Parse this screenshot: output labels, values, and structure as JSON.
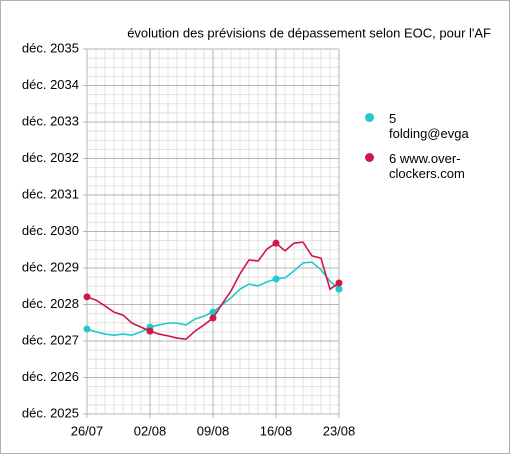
{
  "chart_data": {
    "type": "line",
    "title": "évolution des prévisions de dépassement selon EOC, pour l'AF",
    "categories": [
      "26/07",
      null,
      null,
      null,
      null,
      null,
      null,
      "02/08",
      null,
      null,
      null,
      null,
      null,
      null,
      "09/08",
      null,
      null,
      null,
      null,
      null,
      null,
      "16/08",
      null,
      null,
      null,
      null,
      null,
      null,
      "23/08"
    ],
    "series": [
      {
        "name": "5 folding@evga",
        "color": "#1fc9cf",
        "values": [
          2027.33,
          2027.25,
          2027.19,
          2027.16,
          2027.19,
          2027.16,
          2027.25,
          2027.38,
          2027.44,
          2027.49,
          2027.49,
          2027.44,
          2027.6,
          2027.68,
          2027.79,
          2027.99,
          2028.18,
          2028.42,
          2028.56,
          2028.51,
          2028.62,
          2028.7,
          2028.73,
          2028.92,
          2029.14,
          2029.16,
          2028.95,
          2028.64,
          2028.42
        ]
      },
      {
        "name": "6 www.over-clockers.com",
        "color": "#cf1846",
        "values": [
          2028.21,
          2028.12,
          2027.96,
          2027.79,
          2027.71,
          2027.49,
          2027.38,
          2027.27,
          2027.19,
          2027.14,
          2027.08,
          2027.05,
          2027.27,
          2027.44,
          2027.63,
          2028.01,
          2028.37,
          2028.84,
          2029.22,
          2029.19,
          2029.52,
          2029.68,
          2029.47,
          2029.68,
          2029.71,
          2029.33,
          2029.27,
          2028.42,
          2028.59
        ]
      }
    ],
    "ylim": [
      2025,
      2035
    ],
    "yticks": [
      {
        "value": 2025,
        "label": "déc. 2025"
      },
      {
        "value": 2026,
        "label": "déc. 2026"
      },
      {
        "value": 2027,
        "label": "déc. 2027"
      },
      {
        "value": 2028,
        "label": "déc. 2028"
      },
      {
        "value": 2029,
        "label": "déc. 2029"
      },
      {
        "value": 2030,
        "label": "déc. 2030"
      },
      {
        "value": 2031,
        "label": "déc. 2031"
      },
      {
        "value": 2032,
        "label": "déc. 2032"
      },
      {
        "value": 2033,
        "label": "déc. 2033"
      },
      {
        "value": 2034,
        "label": "déc. 2034"
      },
      {
        "value": 2035,
        "label": "déc. 2035"
      }
    ],
    "grid": true
  }
}
